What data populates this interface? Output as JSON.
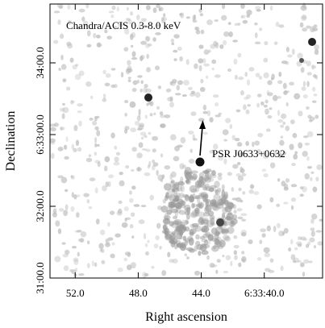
{
  "chart_data": {
    "type": "image",
    "annotations": [
      "Chandra/ACIS 0.3-8.0 keV",
      "PSR J0633+0632"
    ],
    "x_label": "Right ascension",
    "y_label": "Declination",
    "xlim": [
      53.6,
      36.3
    ],
    "xticks": [
      {
        "value": 52,
        "label": "52.0"
      },
      {
        "value": 48,
        "label": "48.0"
      },
      {
        "value": 44,
        "label": "44.0"
      },
      {
        "value": 40,
        "label": "6:33:40.0"
      }
    ],
    "ylim": [
      31.0,
      34.82
    ],
    "yticks": [
      {
        "value": 31,
        "label": "31:00.0"
      },
      {
        "value": 32,
        "label": "32:00.0"
      },
      {
        "value": 33,
        "label": "6:33:00.0"
      },
      {
        "value": 34,
        "label": "34:00.0"
      }
    ]
  }
}
